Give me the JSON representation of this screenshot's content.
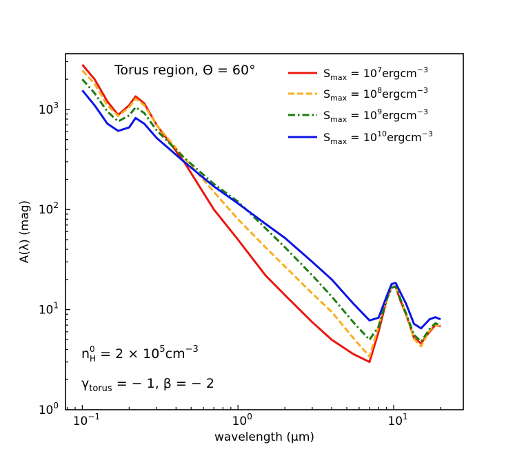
{
  "chart_data": {
    "type": "line",
    "title": "",
    "xlabel": "wavelength (μm)",
    "ylabel": "A(λ) (mag)",
    "x_scale": "log",
    "y_scale": "log",
    "xlim": [
      0.078,
      28
    ],
    "ylim": [
      1,
      3600
    ],
    "x_ticks": [
      {
        "value": 0.1,
        "base": "10",
        "exp": "−1"
      },
      {
        "value": 1,
        "base": "10",
        "exp": "0"
      },
      {
        "value": 10,
        "base": "10",
        "exp": "1"
      }
    ],
    "y_ticks": [
      {
        "value": 1,
        "base": "10",
        "exp": "0"
      },
      {
        "value": 10,
        "base": "10",
        "exp": "1"
      },
      {
        "value": 100,
        "base": "10",
        "exp": "2"
      },
      {
        "value": 1000,
        "base": "10",
        "exp": "3"
      }
    ],
    "grid": false,
    "legend_position": "top-right",
    "annotations": {
      "region": "Torus region, Θ = 60°",
      "density_prefix": "n",
      "density_sup": "0",
      "density_sub": "H",
      "density_eq": " = 2 × 10",
      "density_exp": "5",
      "density_unit": "cm",
      "density_unit_exp": "−3",
      "gamma_symbol": "γ",
      "gamma_sub": "torus",
      "gamma_rest": " = − 1, β = − 2"
    },
    "series": [
      {
        "legend_base": "S",
        "legend_sub": "max",
        "legend_eq": " = 10",
        "legend_exp": "7",
        "legend_unit": "ergcm",
        "legend_unit_exp": "−3",
        "color": "#e8180f",
        "dash": "solid",
        "x": [
          0.1,
          0.12,
          0.145,
          0.17,
          0.2,
          0.22,
          0.25,
          0.3,
          0.45,
          0.7,
          1.0,
          1.5,
          2.0,
          3.0,
          4.0,
          5.5,
          7.0,
          8.0,
          9.0,
          9.7,
          10.3,
          11.0,
          12.0,
          13.5,
          15.0,
          17.0,
          18.5,
          20.0
        ],
        "y": [
          2800,
          2000,
          1200,
          880,
          1100,
          1350,
          1150,
          700,
          300,
          100,
          50,
          22,
          14,
          7.5,
          5.0,
          3.6,
          3.0,
          6.0,
          12.5,
          17,
          17,
          12.5,
          9,
          5.2,
          4.6,
          6.0,
          7.0,
          6.8
        ]
      },
      {
        "legend_base": "S",
        "legend_sub": "max",
        "legend_eq": " = 10",
        "legend_exp": "8",
        "legend_unit": "ergcm",
        "legend_unit_exp": "−3",
        "color": "#f8ae1e",
        "dash": "dashed",
        "x": [
          0.1,
          0.12,
          0.145,
          0.17,
          0.2,
          0.22,
          0.25,
          0.3,
          0.45,
          0.7,
          1.0,
          1.5,
          2.0,
          3.0,
          4.0,
          5.5,
          7.0,
          8.0,
          9.0,
          9.7,
          10.3,
          11.0,
          12.0,
          13.5,
          15.0,
          17.0,
          18.5,
          20.0
        ],
        "y": [
          2450,
          1800,
          1100,
          860,
          1050,
          1280,
          1100,
          700,
          330,
          150,
          80,
          42,
          27,
          14.5,
          9.5,
          5.2,
          3.4,
          6.8,
          13,
          17,
          17,
          13,
          9.2,
          5.1,
          4.3,
          6.2,
          7.1,
          6.8
        ]
      },
      {
        "legend_base": "S",
        "legend_sub": "max",
        "legend_eq": " = 10",
        "legend_exp": "9",
        "legend_unit": "ergcm",
        "legend_unit_exp": "−3",
        "color": "#1b7e0e",
        "dash": "dashdot",
        "x": [
          0.1,
          0.12,
          0.145,
          0.17,
          0.2,
          0.22,
          0.25,
          0.3,
          0.45,
          0.7,
          1.0,
          1.5,
          2.0,
          3.0,
          4.0,
          5.5,
          7.0,
          8.0,
          9.0,
          9.7,
          10.3,
          11.0,
          12.0,
          13.5,
          15.0,
          17.0,
          18.5,
          20.0
        ],
        "y": [
          2000,
          1450,
          950,
          760,
          870,
          1050,
          920,
          620,
          330,
          180,
          120,
          65,
          42,
          22,
          13.5,
          7.5,
          5.0,
          6.8,
          12.5,
          16.5,
          17,
          13,
          9.2,
          5.6,
          4.8,
          6.4,
          7.3,
          7.0
        ]
      },
      {
        "legend_base": "S",
        "legend_sub": "max",
        "legend_eq": " = 10",
        "legend_exp": "10",
        "legend_unit": "ergcm",
        "legend_unit_exp": "−3",
        "color": "#0d14e6",
        "dash": "solid",
        "x": [
          0.1,
          0.12,
          0.145,
          0.17,
          0.2,
          0.22,
          0.25,
          0.3,
          0.45,
          0.7,
          1.0,
          1.5,
          2.0,
          3.0,
          4.0,
          5.5,
          7.0,
          8.0,
          9.0,
          9.7,
          10.3,
          11.0,
          12.0,
          13.5,
          15.0,
          17.0,
          18.5,
          20.0
        ],
        "y": [
          1550,
          1100,
          720,
          610,
          660,
          820,
          720,
          520,
          300,
          170,
          115,
          72,
          52,
          30,
          20,
          11.5,
          7.8,
          8.3,
          13.5,
          18,
          18.5,
          15,
          11.5,
          7.2,
          6.5,
          8.0,
          8.4,
          8.0
        ]
      }
    ]
  }
}
